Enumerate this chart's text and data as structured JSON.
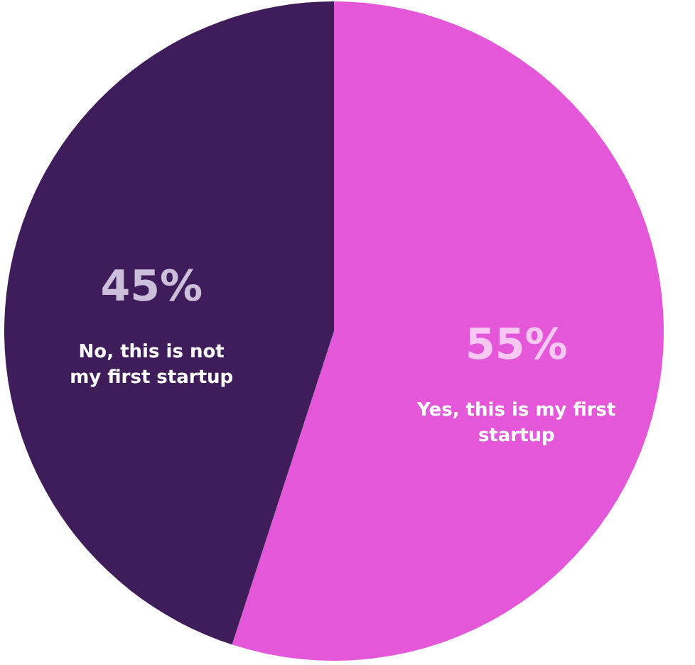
{
  "chart_data": {
    "type": "pie",
    "categories": [
      "Yes, this is my first startup",
      "No, this is not my first startup"
    ],
    "values": [
      55,
      45
    ],
    "colors": [
      "#e457d9",
      "#3f1d5a"
    ],
    "value_labels": [
      "55%",
      "45%"
    ],
    "legend": false
  }
}
